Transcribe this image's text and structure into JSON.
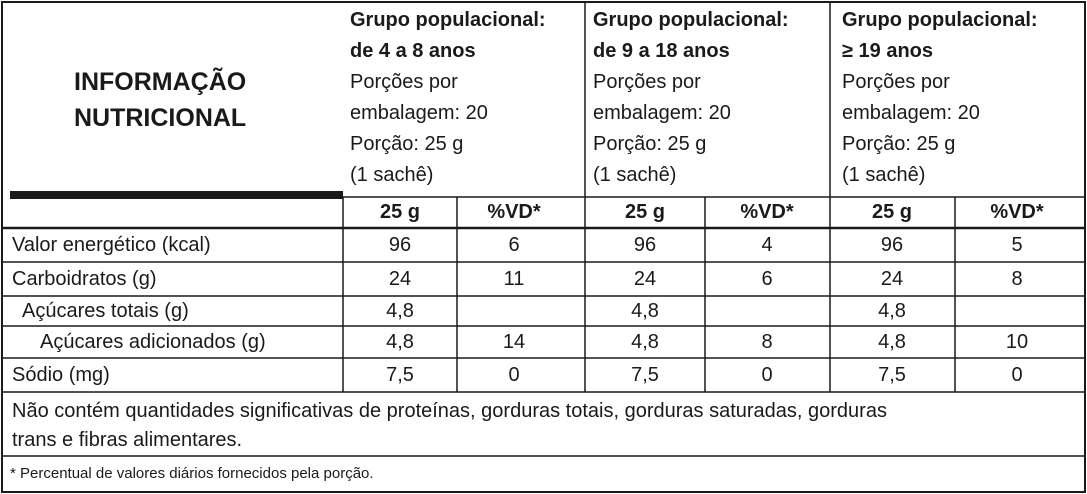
{
  "title": [
    "INFORMAÇÃO",
    "NUTRICIONAL"
  ],
  "groups": [
    {
      "heading": [
        "Grupo populacional:",
        "de 4 a 8 anos"
      ],
      "portion": [
        "Porções por",
        "embalagem: 20",
        "Porção: 25 g",
        "(1 sachê)"
      ],
      "columns": [
        "25 g",
        "%VD*"
      ]
    },
    {
      "heading": [
        "Grupo populacional:",
        "de 9 a 18 anos"
      ],
      "portion": [
        "Porções por",
        "embalagem: 20",
        "Porção: 25 g",
        "(1 sachê)"
      ],
      "columns": [
        "25 g",
        "%VD*"
      ]
    },
    {
      "heading": [
        "Grupo populacional:",
        "≥ 19 anos"
      ],
      "portion": [
        "Porções por",
        "embalagem: 20",
        "Porção: 25 g",
        "(1 sachê)"
      ],
      "columns": [
        "25 g",
        "%VD*"
      ]
    }
  ],
  "rows": [
    {
      "label": "Valor energético (kcal)",
      "cells": [
        "96",
        "6",
        "96",
        "4",
        "96",
        "5"
      ]
    },
    {
      "label": "Carboidratos (g)",
      "cells": [
        "24",
        "11",
        "24",
        "6",
        "24",
        "8"
      ]
    },
    {
      "label": "Açúcares totais (g)",
      "cells": [
        "4,8",
        null,
        "4,8",
        null,
        "4,8",
        null
      ]
    },
    {
      "label": "Açúcares adicionados (g)",
      "cells": [
        "4,8",
        "14",
        "4,8",
        "8",
        "4,8",
        "10"
      ]
    },
    {
      "label": "Sódio (mg)",
      "cells": [
        "7,5",
        "0",
        "7,5",
        "0",
        "7,5",
        "0"
      ]
    }
  ],
  "note": [
    "Não contém quantidades significativas de proteínas, gorduras totais, gorduras saturadas, gorduras",
    "trans e fibras alimentares."
  ],
  "footnote": "* Percentual de valores diários fornecidos pela porção."
}
